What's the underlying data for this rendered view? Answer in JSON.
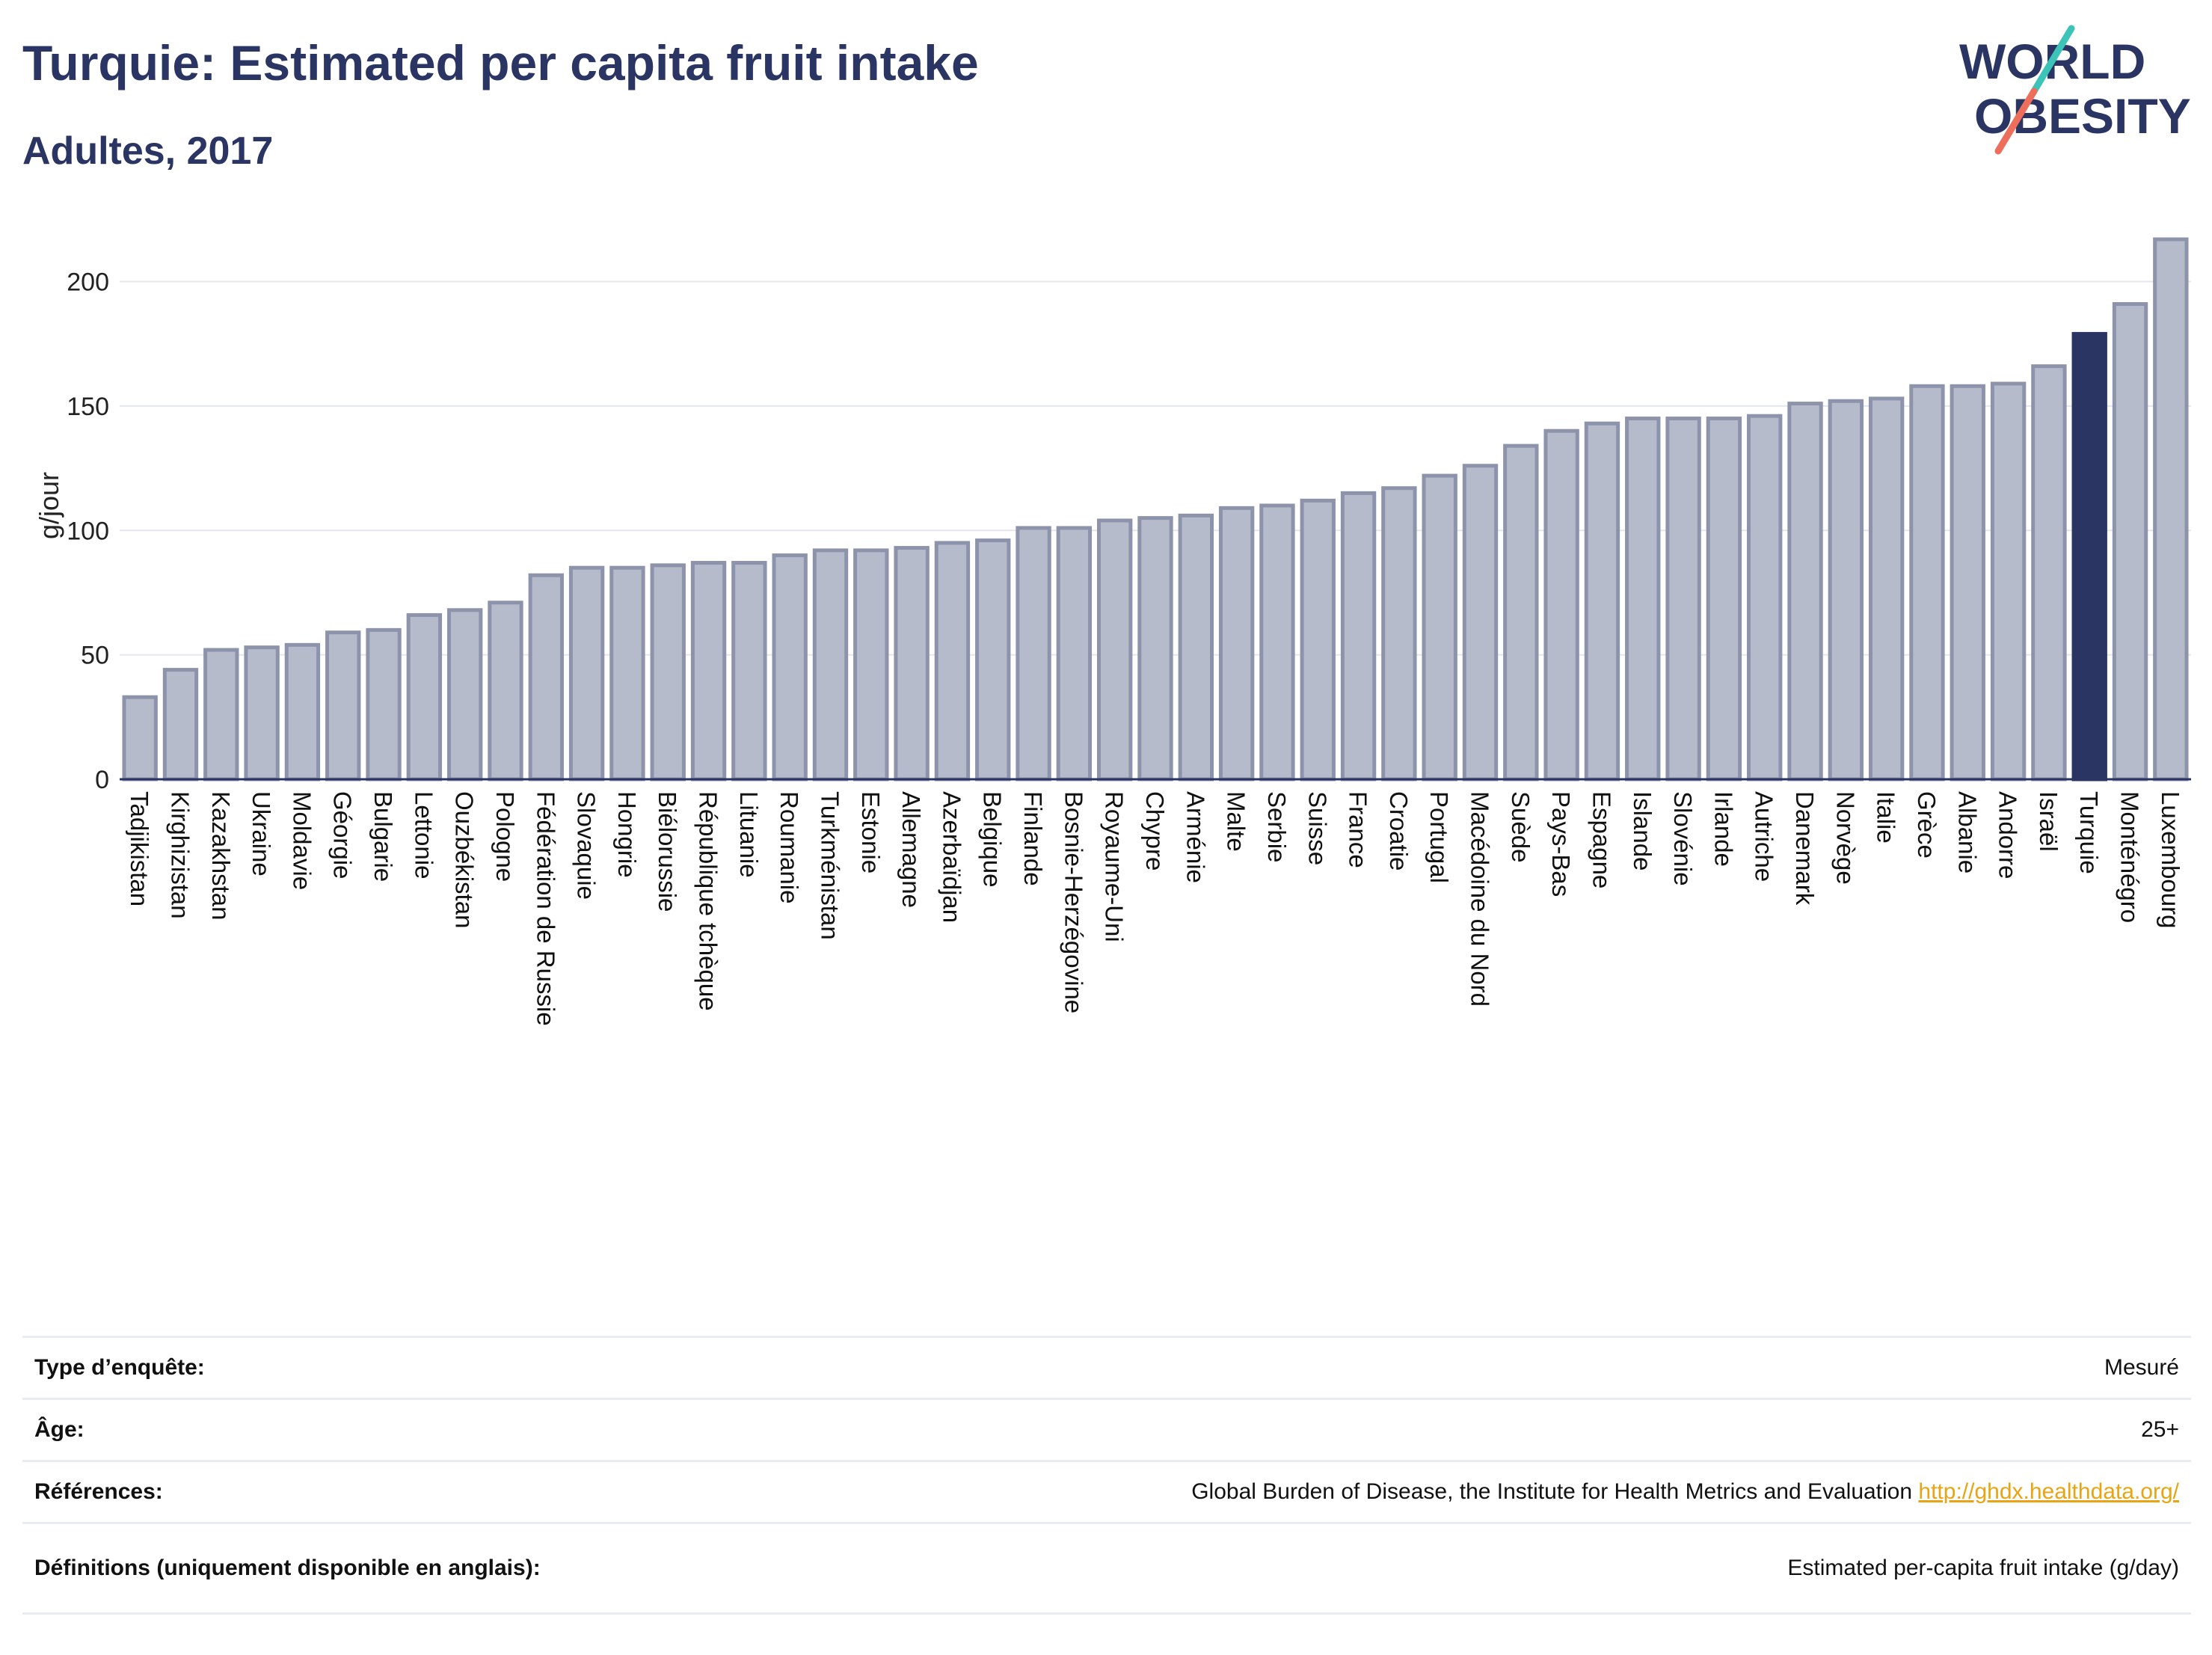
{
  "header": {
    "title": "Turquie: Estimated per capita fruit intake",
    "subtitle": "Adultes, 2017"
  },
  "logo": {
    "line1": "WORLD",
    "line2": "OBESITY"
  },
  "chart_data": {
    "type": "bar",
    "ylabel": "g/jour",
    "ylim": [
      0,
      220
    ],
    "yticks": [
      0,
      50,
      100,
      150,
      200
    ],
    "grid": true,
    "highlight": "Turquie",
    "colors": {
      "bar": "#b6bbcc",
      "bar_edge": "#8d93ab",
      "highlight": "#2a3563"
    },
    "categories": [
      "Tadjikistan",
      "Kirghizistan",
      "Kazakhstan",
      "Ukraine",
      "Moldavie",
      "Géorgie",
      "Bulgarie",
      "Lettonie",
      "Ouzbékistan",
      "Pologne",
      "Fédération de Russie",
      "Slovaquie",
      "Hongrie",
      "Biélorussie",
      "République tchèque",
      "Lituanie",
      "Roumanie",
      "Turkménistan",
      "Estonie",
      "Allemagne",
      "Azerbaïdjan",
      "Belgique",
      "Finlande",
      "Bosnie-Herzégovine",
      "Royaume-Uni",
      "Chypre",
      "Arménie",
      "Malte",
      "Serbie",
      "Suisse",
      "France",
      "Croatie",
      "Portugal",
      "Macédoine du Nord",
      "Suède",
      "Pays-Bas",
      "Espagne",
      "Islande",
      "Slovénie",
      "Irlande",
      "Autriche",
      "Danemark",
      "Norvège",
      "Italie",
      "Grèce",
      "Albanie",
      "Andorre",
      "Israël",
      "Turquie",
      "Monténégro",
      "Luxembourg"
    ],
    "values": [
      33,
      44,
      52,
      53,
      54,
      59,
      60,
      66,
      68,
      71,
      82,
      85,
      85,
      86,
      87,
      87,
      90,
      92,
      92,
      93,
      95,
      96,
      101,
      101,
      104,
      105,
      106,
      109,
      110,
      112,
      115,
      117,
      122,
      126,
      134,
      140,
      143,
      145,
      145,
      145,
      146,
      151,
      152,
      153,
      158,
      158,
      159,
      166,
      179,
      191,
      217
    ]
  },
  "info": [
    {
      "label": "Type d’enquête:",
      "value": "Mesuré"
    },
    {
      "label": "Âge:",
      "value": "25+"
    },
    {
      "label": "Références:",
      "value": "Global Burden of Disease, the Institute for Health Metrics and Evaluation",
      "link": "http://ghdx.healthdata.org/"
    },
    {
      "label": "Définitions (uniquement disponible en anglais):",
      "value": "Estimated per-capita fruit intake (g/day)"
    }
  ]
}
